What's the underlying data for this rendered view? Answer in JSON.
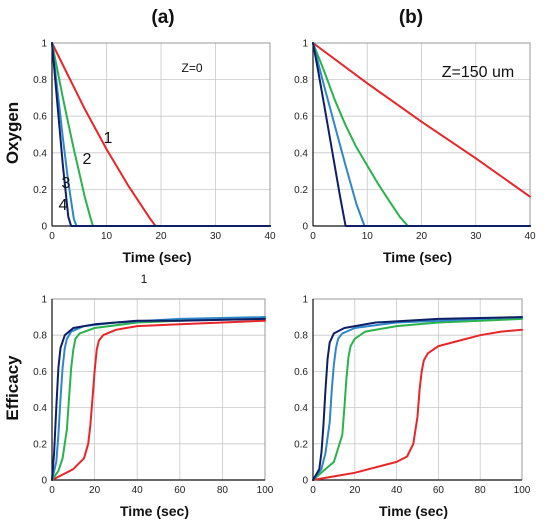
{
  "panel_labels": {
    "a": "(a)",
    "b": "(b)"
  },
  "stray_mark": "1",
  "colors": {
    "curve1": "#e8262a",
    "curve2": "#2bb24c",
    "curve3": "#2f86c8",
    "curve4": "#0f1f66"
  },
  "chart_data": [
    {
      "id": "top_left",
      "type": "line",
      "xlabel": "Time (sec)",
      "ylabel": "Oxygen",
      "annotation": "Z=0",
      "curve_labels": [
        "1",
        "2",
        "3",
        "4"
      ],
      "xlim": [
        0,
        40
      ],
      "ylim": [
        0,
        1
      ],
      "xticks": [
        "0",
        "10",
        "20",
        "30",
        "40"
      ],
      "yticks": [
        "0",
        "0.2",
        "0.4",
        "0.6",
        "0.8",
        "1"
      ],
      "grid": true,
      "series": [
        {
          "x": [
            0,
            2,
            4,
            6,
            8,
            10,
            12,
            14,
            16,
            18,
            19,
            40
          ],
          "values": [
            1,
            0.88,
            0.76,
            0.64,
            0.53,
            0.42,
            0.32,
            0.22,
            0.13,
            0.04,
            0,
            0
          ]
        },
        {
          "x": [
            0,
            1,
            2,
            3,
            4,
            5,
            6,
            7,
            7.5,
            40
          ],
          "values": [
            1,
            0.85,
            0.7,
            0.56,
            0.42,
            0.29,
            0.16,
            0.05,
            0,
            0
          ]
        },
        {
          "x": [
            0,
            1,
            2,
            3,
            4,
            4.5,
            40
          ],
          "values": [
            1,
            0.74,
            0.48,
            0.24,
            0.04,
            0,
            0
          ]
        },
        {
          "x": [
            0,
            1,
            2,
            3,
            3.5,
            40
          ],
          "values": [
            1,
            0.66,
            0.33,
            0.05,
            0,
            0
          ]
        }
      ]
    },
    {
      "id": "top_right",
      "type": "line",
      "xlabel": "Time (sec)",
      "ylabel": "",
      "annotation": "Z=150 um",
      "xlim": [
        0,
        40
      ],
      "ylim": [
        0,
        1
      ],
      "xticks": [
        "0",
        "10",
        "20",
        "30",
        "40"
      ],
      "yticks": [
        "0",
        "0.2",
        "0.4",
        "0.6",
        "0.8",
        "1"
      ],
      "grid": true,
      "series": [
        {
          "x": [
            0,
            10,
            20,
            30,
            40
          ],
          "values": [
            1,
            0.78,
            0.57,
            0.37,
            0.16
          ]
        },
        {
          "x": [
            0,
            2,
            4,
            6,
            8,
            10,
            12,
            14,
            16,
            17.5,
            40
          ],
          "values": [
            1,
            0.85,
            0.69,
            0.55,
            0.43,
            0.33,
            0.23,
            0.14,
            0.05,
            0,
            0
          ]
        },
        {
          "x": [
            0,
            2,
            4,
            6,
            8,
            9.5,
            40
          ],
          "values": [
            1,
            0.77,
            0.55,
            0.33,
            0.12,
            0,
            0
          ]
        },
        {
          "x": [
            0,
            1,
            2,
            3,
            4,
            5,
            6,
            40
          ],
          "values": [
            1,
            0.84,
            0.67,
            0.5,
            0.33,
            0.16,
            0,
            0
          ]
        }
      ]
    },
    {
      "id": "bottom_left",
      "type": "line",
      "xlabel": "Time (sec)",
      "ylabel": "Efficacy",
      "xlim": [
        0,
        100
      ],
      "ylim": [
        0,
        1
      ],
      "xticks": [
        "0",
        "20",
        "40",
        "60",
        "80",
        "100"
      ],
      "yticks": [
        "0",
        "0.2",
        "0.4",
        "0.6",
        "0.8",
        "1"
      ],
      "grid": true,
      "series": [
        {
          "x": [
            0,
            5,
            10,
            15,
            17,
            18,
            19,
            20,
            21,
            22,
            24,
            30,
            40,
            60,
            80,
            100
          ],
          "values": [
            0,
            0.03,
            0.06,
            0.12,
            0.2,
            0.3,
            0.45,
            0.6,
            0.72,
            0.77,
            0.8,
            0.83,
            0.85,
            0.86,
            0.87,
            0.88
          ]
        },
        {
          "x": [
            0,
            3,
            5,
            7,
            8,
            9,
            10,
            11,
            13,
            20,
            40,
            60,
            80,
            100
          ],
          "values": [
            0,
            0.05,
            0.12,
            0.28,
            0.45,
            0.62,
            0.72,
            0.78,
            0.81,
            0.84,
            0.87,
            0.88,
            0.89,
            0.9
          ]
        },
        {
          "x": [
            0,
            2,
            3,
            4,
            5,
            6,
            7,
            9,
            15,
            30,
            60,
            100
          ],
          "values": [
            0,
            0.1,
            0.25,
            0.45,
            0.62,
            0.73,
            0.78,
            0.82,
            0.85,
            0.87,
            0.89,
            0.9
          ]
        },
        {
          "x": [
            0,
            1,
            2,
            3,
            4,
            6,
            10,
            20,
            40,
            60,
            100
          ],
          "values": [
            0,
            0.15,
            0.4,
            0.62,
            0.73,
            0.8,
            0.84,
            0.86,
            0.88,
            0.88,
            0.89
          ]
        }
      ]
    },
    {
      "id": "bottom_right",
      "type": "line",
      "xlabel": "Time (sec)",
      "ylabel": "",
      "xlim": [
        0,
        100
      ],
      "ylim": [
        0,
        1
      ],
      "xticks": [
        "0",
        "20",
        "40",
        "60",
        "80",
        "100"
      ],
      "yticks": [
        "0",
        "0.2",
        "0.4",
        "0.6",
        "0.8",
        "1"
      ],
      "grid": true,
      "series": [
        {
          "x": [
            0,
            10,
            20,
            30,
            40,
            45,
            48,
            50,
            51,
            52,
            53,
            55,
            60,
            70,
            80,
            90,
            100
          ],
          "values": [
            0,
            0.02,
            0.04,
            0.07,
            0.1,
            0.13,
            0.2,
            0.35,
            0.5,
            0.6,
            0.66,
            0.7,
            0.74,
            0.77,
            0.8,
            0.82,
            0.83
          ]
        },
        {
          "x": [
            0,
            5,
            10,
            14,
            15,
            16,
            17,
            18,
            20,
            25,
            40,
            60,
            80,
            100
          ],
          "values": [
            0,
            0.05,
            0.1,
            0.25,
            0.4,
            0.56,
            0.68,
            0.74,
            0.78,
            0.82,
            0.85,
            0.87,
            0.88,
            0.89
          ]
        },
        {
          "x": [
            0,
            4,
            6,
            8,
            9,
            10,
            11,
            12,
            14,
            20,
            40,
            60,
            80,
            100
          ],
          "values": [
            0,
            0.06,
            0.15,
            0.32,
            0.5,
            0.64,
            0.73,
            0.78,
            0.81,
            0.84,
            0.87,
            0.88,
            0.89,
            0.9
          ]
        },
        {
          "x": [
            0,
            3,
            4,
            5,
            6,
            7,
            8,
            10,
            15,
            30,
            60,
            100
          ],
          "values": [
            0,
            0.06,
            0.15,
            0.3,
            0.5,
            0.67,
            0.76,
            0.81,
            0.84,
            0.87,
            0.89,
            0.9
          ]
        }
      ]
    }
  ]
}
